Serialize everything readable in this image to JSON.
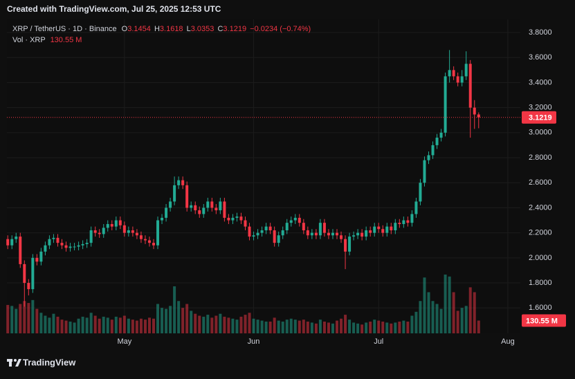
{
  "header": {
    "text": "Created with TradingView.com, Jul 25, 2025 12:53 UTC"
  },
  "chart_data": {
    "type": "candlestick",
    "symbol": "XRP / TetherUS · 1D · Binance",
    "legend_keys": [
      "O",
      "H",
      "L",
      "C"
    ],
    "change": {
      "value": -0.0234,
      "label": "−0.0234"
    },
    "change_pct": {
      "value": -0.74,
      "label": "(−0.74%)"
    },
    "volume_title": "Vol · XRP",
    "last_volume": {
      "value": 130.55,
      "label": "130.55 M"
    },
    "up_color": "#22ab94",
    "down_color": "#f23645",
    "open": [
      2.15,
      2.1,
      2.15,
      2.17,
      1.95,
      1.8,
      1.75,
      2.0,
      1.97,
      2.05,
      2.1,
      2.15,
      2.16,
      2.12,
      2.1,
      2.08,
      2.09,
      2.09,
      2.1,
      2.11,
      2.12,
      2.22,
      2.2,
      2.19,
      2.24,
      2.27,
      2.25,
      2.3,
      2.26,
      2.2,
      2.22,
      2.2,
      2.18,
      2.15,
      2.14,
      2.12,
      2.1,
      2.3,
      2.32,
      2.4,
      2.45,
      2.58,
      2.62,
      2.58,
      2.4,
      2.42,
      2.38,
      2.35,
      2.4,
      2.45,
      2.4,
      2.38,
      2.45,
      2.32,
      2.3,
      2.32,
      2.33,
      2.3,
      2.25,
      2.17,
      2.18,
      2.2,
      2.22,
      2.25,
      2.22,
      2.12,
      2.18,
      2.22,
      2.28,
      2.3,
      2.32,
      2.28,
      2.22,
      2.18,
      2.2,
      2.18,
      2.28,
      2.2,
      2.18,
      2.2,
      2.18,
      2.15,
      2.05,
      2.17,
      2.18,
      2.2,
      2.17,
      2.22,
      2.2,
      2.25,
      2.23,
      2.2,
      2.25,
      2.22,
      2.28,
      2.27,
      2.3,
      2.28,
      2.35,
      2.45,
      2.6,
      2.78,
      2.82,
      2.9,
      2.96,
      3.0,
      3.45,
      3.5,
      3.45,
      3.4,
      3.45,
      3.55,
      3.2,
      3.1454
    ],
    "high": [
      2.18,
      2.18,
      2.2,
      2.2,
      1.98,
      1.83,
      2.03,
      2.03,
      2.08,
      2.13,
      2.18,
      2.19,
      2.19,
      2.15,
      2.13,
      2.12,
      2.12,
      2.13,
      2.14,
      2.15,
      2.25,
      2.25,
      2.23,
      2.27,
      2.3,
      2.3,
      2.33,
      2.33,
      2.29,
      2.25,
      2.25,
      2.23,
      2.21,
      2.18,
      2.17,
      2.15,
      2.33,
      2.35,
      2.43,
      2.48,
      2.65,
      2.65,
      2.65,
      2.61,
      2.45,
      2.45,
      2.41,
      2.43,
      2.48,
      2.48,
      2.43,
      2.48,
      2.48,
      2.35,
      2.35,
      2.36,
      2.36,
      2.33,
      2.28,
      2.21,
      2.23,
      2.25,
      2.28,
      2.28,
      2.25,
      2.21,
      2.25,
      2.31,
      2.33,
      2.35,
      2.35,
      2.31,
      2.25,
      2.23,
      2.23,
      2.31,
      2.31,
      2.23,
      2.23,
      2.23,
      2.21,
      2.18,
      2.2,
      2.21,
      2.23,
      2.23,
      2.25,
      2.25,
      2.28,
      2.28,
      2.26,
      2.28,
      2.28,
      2.31,
      2.31,
      2.33,
      2.33,
      2.38,
      2.48,
      2.63,
      2.81,
      2.85,
      2.93,
      2.99,
      3.03,
      3.48,
      3.66,
      3.53,
      3.48,
      3.5,
      3.65,
      3.58,
      3.26,
      3.1618
    ],
    "low": [
      2.07,
      2.07,
      2.12,
      1.92,
      1.61,
      1.7,
      1.72,
      1.94,
      1.94,
      2.02,
      2.07,
      2.12,
      2.09,
      2.07,
      2.05,
      2.05,
      2.06,
      2.06,
      2.07,
      2.08,
      2.09,
      2.17,
      2.16,
      2.16,
      2.21,
      2.22,
      2.22,
      2.23,
      2.17,
      2.17,
      2.17,
      2.15,
      2.12,
      2.11,
      2.09,
      2.07,
      2.07,
      2.27,
      2.29,
      2.37,
      2.42,
      2.55,
      2.55,
      2.37,
      2.37,
      2.35,
      2.32,
      2.32,
      2.37,
      2.37,
      2.35,
      2.35,
      2.29,
      2.27,
      2.27,
      2.29,
      2.27,
      2.22,
      2.14,
      2.14,
      2.15,
      2.17,
      2.19,
      2.19,
      2.09,
      2.09,
      2.15,
      2.19,
      2.25,
      2.27,
      2.25,
      2.19,
      2.15,
      2.15,
      2.15,
      2.15,
      2.17,
      2.15,
      2.15,
      2.15,
      2.12,
      1.91,
      2.02,
      2.14,
      2.15,
      2.14,
      2.14,
      2.17,
      2.17,
      2.2,
      2.17,
      2.17,
      2.19,
      2.19,
      2.24,
      2.24,
      2.25,
      2.25,
      2.32,
      2.42,
      2.57,
      2.75,
      2.79,
      2.87,
      2.93,
      2.97,
      3.4,
      3.42,
      3.37,
      3.37,
      3.42,
      2.96,
      3.03,
      3.0353
    ],
    "close": [
      2.1,
      2.15,
      2.17,
      1.95,
      1.8,
      1.75,
      2.0,
      1.97,
      2.05,
      2.1,
      2.15,
      2.16,
      2.12,
      2.1,
      2.08,
      2.09,
      2.09,
      2.1,
      2.11,
      2.12,
      2.22,
      2.2,
      2.19,
      2.24,
      2.27,
      2.25,
      2.3,
      2.26,
      2.2,
      2.22,
      2.2,
      2.18,
      2.15,
      2.14,
      2.12,
      2.1,
      2.3,
      2.32,
      2.4,
      2.45,
      2.58,
      2.62,
      2.58,
      2.4,
      2.42,
      2.38,
      2.35,
      2.4,
      2.45,
      2.4,
      2.38,
      2.45,
      2.32,
      2.3,
      2.32,
      2.33,
      2.3,
      2.25,
      2.17,
      2.18,
      2.2,
      2.22,
      2.25,
      2.22,
      2.12,
      2.18,
      2.22,
      2.28,
      2.3,
      2.32,
      2.28,
      2.22,
      2.18,
      2.2,
      2.18,
      2.28,
      2.2,
      2.18,
      2.2,
      2.18,
      2.15,
      2.05,
      2.17,
      2.18,
      2.2,
      2.17,
      2.22,
      2.2,
      2.25,
      2.23,
      2.2,
      2.25,
      2.22,
      2.28,
      2.27,
      2.3,
      2.28,
      2.35,
      2.45,
      2.6,
      2.78,
      2.82,
      2.9,
      2.96,
      3.0,
      3.45,
      3.5,
      3.45,
      3.4,
      3.45,
      3.55,
      3.2,
      3.1454,
      3.1219
    ],
    "volume": [
      290,
      280,
      250,
      300,
      330,
      310,
      340,
      250,
      210,
      180,
      160,
      200,
      170,
      140,
      130,
      120,
      110,
      150,
      170,
      160,
      210,
      180,
      150,
      170,
      160,
      140,
      170,
      160,
      180,
      150,
      140,
      130,
      150,
      140,
      160,
      150,
      300,
      260,
      250,
      280,
      480,
      330,
      260,
      300,
      230,
      200,
      180,
      170,
      190,
      160,
      180,
      200,
      170,
      160,
      150,
      140,
      170,
      190,
      210,
      150,
      140,
      130,
      120,
      120,
      160,
      130,
      120,
      140,
      150,
      140,
      130,
      140,
      120,
      110,
      100,
      140,
      120,
      110,
      100,
      130,
      150,
      190,
      140,
      110,
      100,
      90,
      110,
      120,
      140,
      130,
      120,
      110,
      100,
      110,
      120,
      130,
      120,
      180,
      220,
      330,
      570,
      420,
      330,
      300,
      250,
      600,
      580,
      420,
      230,
      260,
      280,
      470,
      420,
      130.55
    ],
    "xlim": [
      -0.2,
      123
    ],
    "xticks": [
      {
        "value": 28,
        "label": "May"
      },
      {
        "value": 59,
        "label": "Jun"
      },
      {
        "value": 89,
        "label": "Jul"
      },
      {
        "value": 120,
        "label": "Aug"
      }
    ],
    "ylim": [
      1.397,
      3.905
    ],
    "yticks": [
      {
        "value": 1.6,
        "label": "1.6000"
      },
      {
        "value": 1.8,
        "label": "1.8000"
      },
      {
        "value": 2.0,
        "label": "2.0000"
      },
      {
        "value": 2.2,
        "label": "2.2000"
      },
      {
        "value": 2.4,
        "label": "2.4000"
      },
      {
        "value": 2.6,
        "label": "2.6000"
      },
      {
        "value": 2.8,
        "label": "2.8000"
      },
      {
        "value": 3.0,
        "label": "3.0000"
      },
      {
        "value": 3.2,
        "label": "3.2000"
      },
      {
        "value": 3.4,
        "label": "3.4000"
      },
      {
        "value": 3.6,
        "label": "3.6000"
      },
      {
        "value": 3.8,
        "label": "3.8000"
      }
    ],
    "grid": true
  },
  "footer": {
    "brand": "TradingView"
  }
}
